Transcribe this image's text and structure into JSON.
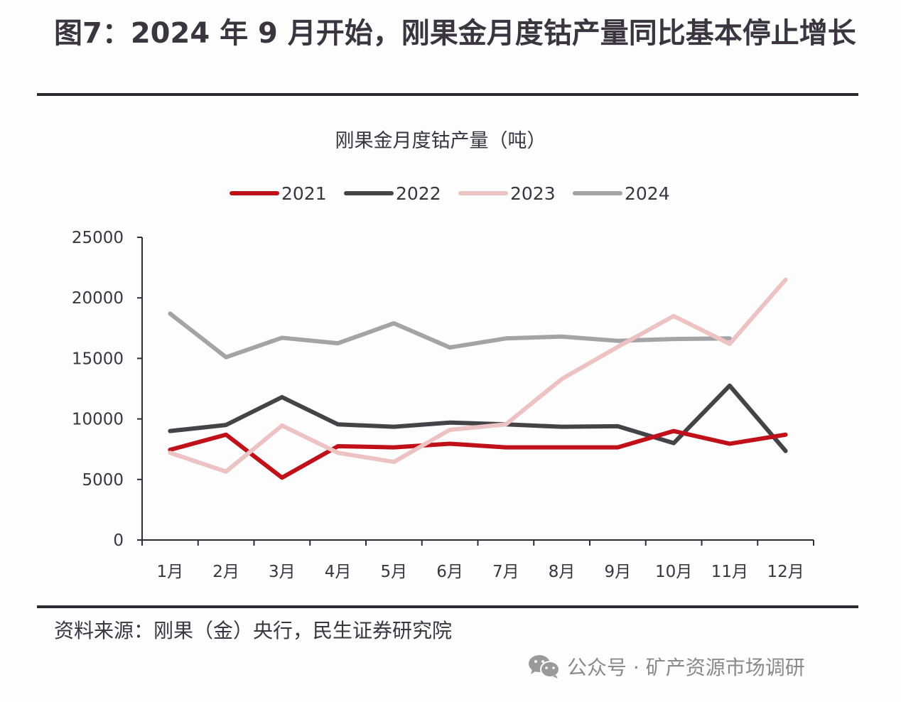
{
  "figure": {
    "title": "图7：2024 年 9 月开始，刚果金月度钴产量同比基本停止增长",
    "source": "资料来源：刚果（金）央行，民生证券研究院",
    "watermark": "公众号 · 矿产资源市场调研",
    "watermark_icon": "wechat-icon"
  },
  "chart_data": {
    "type": "line",
    "title": "刚果金月度钴产量（吨）",
    "xlabel": "",
    "ylabel": "",
    "categories": [
      "1月",
      "2月",
      "3月",
      "4月",
      "5月",
      "6月",
      "7月",
      "8月",
      "9月",
      "10月",
      "11月",
      "12月"
    ],
    "ylim": [
      0,
      25000
    ],
    "yticks": [
      "0",
      "5000",
      "10000",
      "15000",
      "20000",
      "25000"
    ],
    "grid": false,
    "legend_position": "top",
    "series": [
      {
        "name": "2021",
        "color": "#c0101a",
        "values": [
          7450,
          8700,
          5150,
          7750,
          7650,
          7950,
          7650,
          7650,
          7650,
          9000,
          7950,
          8700
        ]
      },
      {
        "name": "2022",
        "color": "#444347",
        "values": [
          9000,
          9500,
          11800,
          9550,
          9350,
          9700,
          9550,
          9350,
          9400,
          8000,
          12750,
          7350
        ]
      },
      {
        "name": "2023",
        "color": "#ecc3c2",
        "values": [
          7200,
          5650,
          9450,
          7200,
          6450,
          9100,
          9550,
          13300,
          15950,
          18500,
          16200,
          21500
        ]
      },
      {
        "name": "2024",
        "color": "#a4a4a6",
        "values": [
          18700,
          15100,
          16700,
          16250,
          17900,
          15900,
          16650,
          16800,
          16450,
          16600,
          16650,
          null
        ]
      }
    ]
  }
}
